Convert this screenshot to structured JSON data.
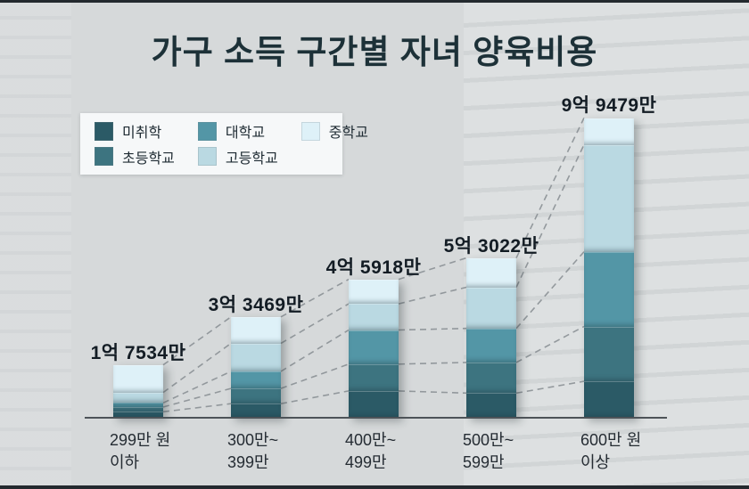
{
  "title": "가구 소득 구간별 자녀 양육비용",
  "colors": {
    "background": "#d6d9da",
    "frame_strip": "#23292e",
    "title_text": "#1d3138",
    "total_label_text": "#131c24",
    "axis_line": "#4d5358",
    "dashed_line": "#878d92",
    "legend_background": "#f8fafb"
  },
  "legend": {
    "items": [
      {
        "label": "미취학",
        "color": "#2b5a66"
      },
      {
        "label": "초등학교",
        "color": "#3d7480"
      },
      {
        "label": "대학교",
        "color": "#5396a6"
      },
      {
        "label": "고등학교",
        "color": "#bad9e2"
      },
      {
        "label": "중학교",
        "color": "#def1f8"
      }
    ]
  },
  "chart_data": {
    "type": "bar",
    "stacked": true,
    "unit": "만원",
    "title": "가구 소득 구간별 자녀 양육비용",
    "categories": [
      {
        "line1": "299만 원",
        "line2": "이하"
      },
      {
        "line1": "300만~",
        "line2": "399만"
      },
      {
        "line1": "400만~",
        "line2": "499만"
      },
      {
        "line1": "500만~",
        "line2": "599만"
      },
      {
        "line1": "600만 원",
        "line2": "이상"
      }
    ],
    "totals_label": [
      "1억 7534만",
      "3억 3469만",
      "4억 5918만",
      "5억 3022만",
      "9억 9479만"
    ],
    "totals_value": [
      17534,
      33469,
      45918,
      53022,
      99479
    ],
    "stack_order_bottom_to_top": [
      "미취학",
      "초등학교",
      "대학교",
      "고등학교",
      "중학교"
    ],
    "series": [
      {
        "name": "미취학",
        "color": "#2b5a66",
        "values": [
          1980,
          4670,
          8900,
          8200,
          12100
        ]
      },
      {
        "name": "초등학교",
        "color": "#3d7480",
        "values": [
          1570,
          5050,
          8900,
          10150,
          18200
        ]
      },
      {
        "name": "대학교",
        "color": "#5396a6",
        "values": [
          1390,
          5650,
          11300,
          11300,
          24800
        ]
      },
      {
        "name": "고등학교",
        "color": "#bad9e2",
        "values": [
          3460,
          9300,
          8700,
          13650,
          35500
        ]
      },
      {
        "name": "중학교",
        "color": "#def1f8",
        "values": [
          9134,
          8799,
          8118,
          9722,
          8879
        ]
      }
    ],
    "legend_position": "upper-left",
    "grid": false,
    "connector_lines": "dashed lines join segment boundaries of adjacent bars"
  }
}
